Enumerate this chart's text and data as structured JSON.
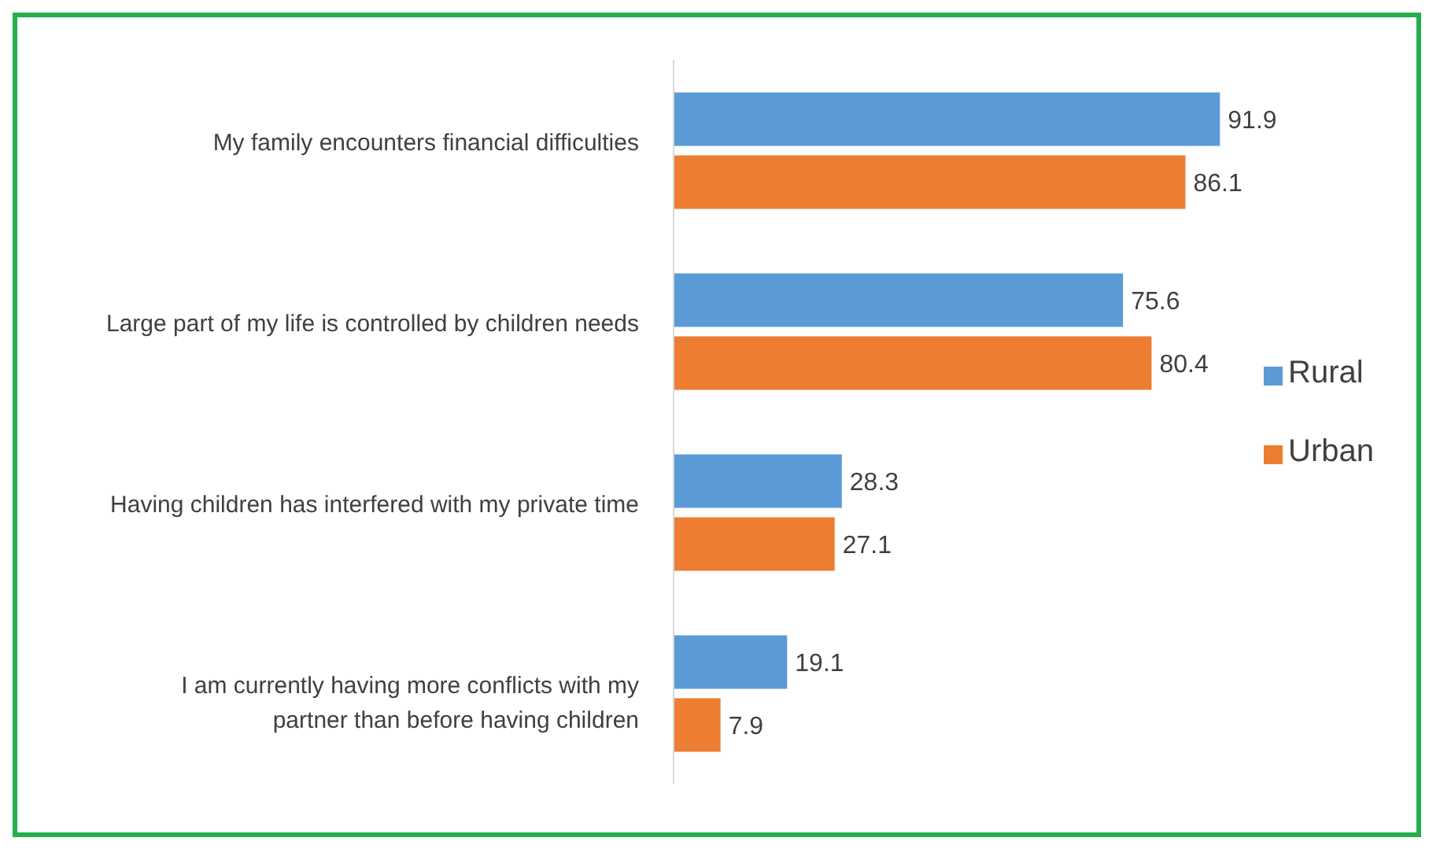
{
  "chart_data": {
    "type": "bar",
    "orientation": "horizontal",
    "categories": [
      "My family encounters financial difficulties",
      "Large part of my  life is controlled by children needs",
      "Having children has interfered with my private time",
      "I am currently having more conflicts with my partner than before having children"
    ],
    "series": [
      {
        "name": "Rural",
        "color": "#5b9bd5",
        "values": [
          91.9,
          75.6,
          28.3,
          19.1
        ]
      },
      {
        "name": "Urban",
        "color": "#ed7d31",
        "values": [
          86.1,
          80.4,
          27.1,
          7.9
        ]
      }
    ],
    "data_labels": true,
    "legend": "right",
    "grid": false
  }
}
